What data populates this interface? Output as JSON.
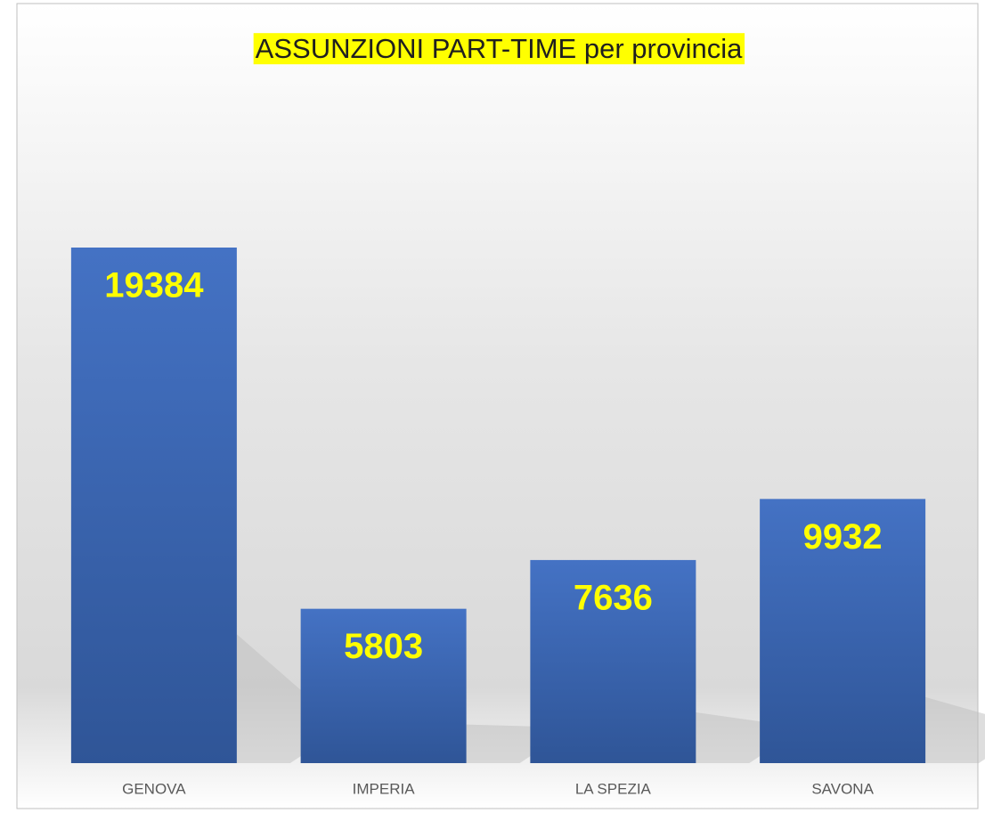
{
  "chart_data": {
    "type": "bar",
    "title": "ASSUNZIONI PART-TIME per provincia",
    "categories": [
      "GENOVA",
      "IMPERIA",
      "LA SPEZIA",
      "SAVONA"
    ],
    "values": [
      19384,
      5803,
      7636,
      9932
    ],
    "color": "#4472c4",
    "label_color": "#ffff00",
    "title_highlight": "#ffff00"
  }
}
